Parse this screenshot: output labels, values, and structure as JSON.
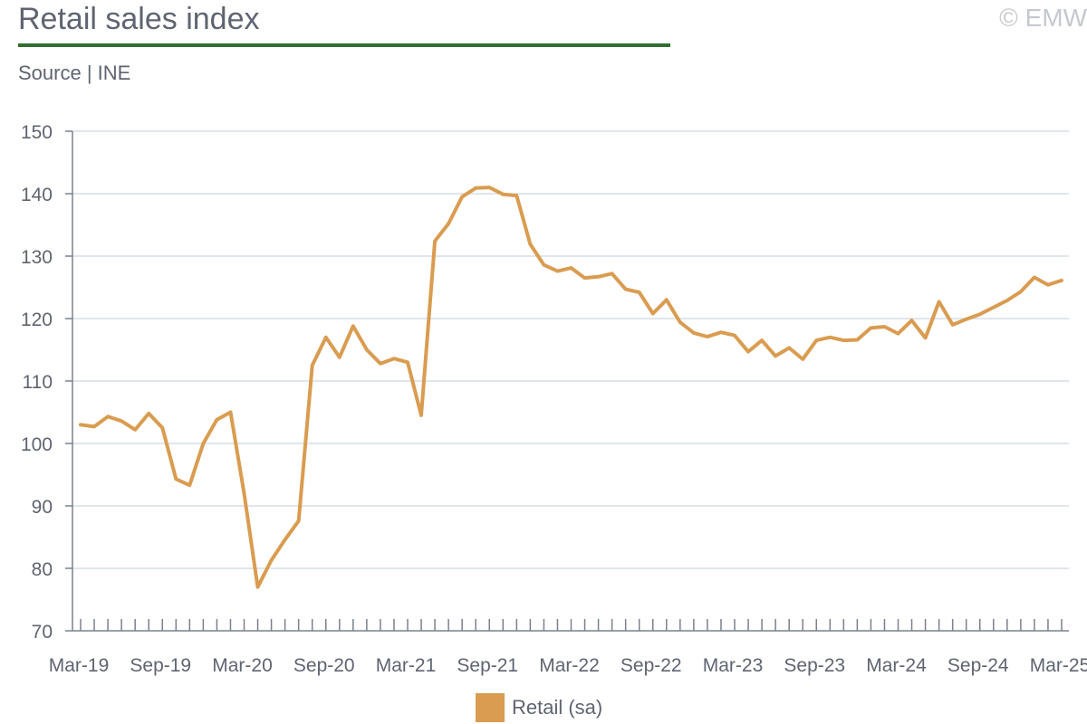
{
  "header": {
    "title": "Retail sales index",
    "source": "Source | INE",
    "copyright": "© EMW"
  },
  "colors": {
    "title_rule": "#2e6f2e",
    "series": "#d99c50",
    "grid": "#d5dde8",
    "axis": "#7a808c",
    "text": "#5f6470"
  },
  "chart_data": {
    "type": "line",
    "ylim": [
      70,
      150
    ],
    "yticks": [
      70,
      80,
      90,
      100,
      110,
      120,
      130,
      140,
      150
    ],
    "grid": true,
    "legend_position": "bottom",
    "x_start": "Mar-19",
    "x_end": "Mar-25",
    "xtick_labels": [
      "Mar-19",
      "Sep-19",
      "Mar-20",
      "Sep-20",
      "Mar-21",
      "Sep-21",
      "Mar-22",
      "Sep-22",
      "Mar-23",
      "Sep-23",
      "Mar-24",
      "Sep-24",
      "Mar-25"
    ],
    "series": [
      {
        "name": "Retail (sa)",
        "frequency": "monthly",
        "values": [
          103.0,
          102.7,
          104.3,
          103.6,
          102.2,
          104.8,
          102.5,
          94.3,
          93.3,
          100.0,
          103.8,
          105.0,
          92.0,
          77.0,
          81.3,
          84.6,
          87.6,
          112.5,
          117.0,
          113.8,
          118.8,
          115.0,
          112.8,
          113.6,
          113.0,
          104.5,
          132.4,
          135.2,
          139.5,
          140.9,
          141.0,
          139.9,
          139.7,
          131.9,
          128.6,
          127.6,
          128.1,
          126.5,
          126.7,
          127.2,
          124.7,
          124.2,
          120.8,
          123.0,
          119.4,
          117.7,
          117.1,
          117.8,
          117.3,
          114.7,
          116.5,
          114.0,
          115.3,
          113.5,
          116.5,
          117.0,
          116.5,
          116.6,
          118.5,
          118.7,
          117.6,
          119.7,
          116.9,
          122.7,
          119.0,
          119.9,
          120.7,
          121.8,
          122.9,
          124.3,
          126.6,
          125.4,
          126.1
        ]
      }
    ]
  }
}
